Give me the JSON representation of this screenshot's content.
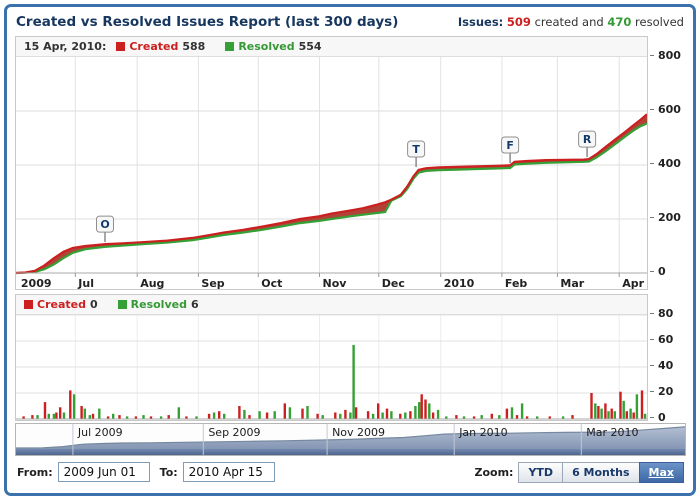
{
  "header": {
    "title": "Created vs Resolved Issues Report (last 300 days)",
    "issues_prefix": "Issues:",
    "created_count": "509",
    "created_text": "created and",
    "resolved_count": "470",
    "resolved_text": "resolved"
  },
  "colors": {
    "created": "#cc2020",
    "resolved": "#35a035",
    "band": "#b04238",
    "grid": "#e2e2e2",
    "axis": "#aaaaaa",
    "accent_blue": "#3b72ad",
    "nav_area_top": "#b3bfd2",
    "nav_area_bottom": "#8496b4",
    "nav_strip_top": "#7389ae",
    "nav_strip_bottom": "#4e6690"
  },
  "top_legend": {
    "date_label": "15 Apr, 2010:",
    "created_label": "Created",
    "created_value": "588",
    "resolved_label": "Resolved",
    "resolved_value": "554"
  },
  "bottom_legend": {
    "created_label": "Created",
    "created_value": "0",
    "resolved_label": "Resolved",
    "resolved_value": "6"
  },
  "chart_data": [
    {
      "type": "line",
      "name": "cumulative-created-vs-resolved",
      "title": "Created vs Resolved Issues Report (last 300 days)",
      "x_range": [
        "2009 Jun 01",
        "2010 Apr 15"
      ],
      "ylim": [
        0,
        800
      ],
      "y_ticks": [
        0,
        200,
        400,
        600,
        800
      ],
      "grid": true,
      "legend_position": "top-left",
      "x_labels": [
        {
          "text": "2009",
          "pct": 0.3
        },
        {
          "text": "Jul",
          "pct": 9.4
        },
        {
          "text": "Aug",
          "pct": 19.2
        },
        {
          "text": "Sep",
          "pct": 28.9
        },
        {
          "text": "Oct",
          "pct": 38.4
        },
        {
          "text": "Nov",
          "pct": 48.1
        },
        {
          "text": "Dec",
          "pct": 57.5
        },
        {
          "text": "2010",
          "pct": 67.3
        },
        {
          "text": "Feb",
          "pct": 77.0
        },
        {
          "text": "Mar",
          "pct": 85.8
        },
        {
          "text": "Apr",
          "pct": 95.6
        }
      ],
      "month_grid_pcts": [
        9.4,
        19.2,
        28.9,
        38.4,
        48.1,
        57.5,
        67.3,
        77.0,
        85.8,
        95.6
      ],
      "flags": [
        {
          "label": "O",
          "pct": 14.1,
          "value": 107
        },
        {
          "label": "T",
          "pct": 63.4,
          "value": 385
        },
        {
          "label": "F",
          "pct": 78.3,
          "value": 400
        },
        {
          "label": "R",
          "pct": 90.5,
          "value": 422
        }
      ],
      "series_names": [
        "Created",
        "Resolved"
      ],
      "points": [
        [
          0,
          0,
          0
        ],
        [
          1.5,
          2,
          1
        ],
        [
          3,
          8,
          4
        ],
        [
          4.5,
          28,
          14
        ],
        [
          6,
          55,
          32
        ],
        [
          7.5,
          78,
          55
        ],
        [
          9,
          93,
          75
        ],
        [
          11,
          100,
          88
        ],
        [
          13,
          104,
          94
        ],
        [
          14.2,
          107,
          97
        ],
        [
          17,
          110,
          102
        ],
        [
          20,
          114,
          107
        ],
        [
          24,
          120,
          113
        ],
        [
          28,
          130,
          122
        ],
        [
          31,
          142,
          133
        ],
        [
          33,
          150,
          141
        ],
        [
          36,
          160,
          150
        ],
        [
          39,
          172,
          160
        ],
        [
          42,
          185,
          172
        ],
        [
          45,
          200,
          185
        ],
        [
          48,
          210,
          193
        ],
        [
          50,
          220,
          200
        ],
        [
          53,
          232,
          210
        ],
        [
          55,
          240,
          216
        ],
        [
          57,
          252,
          222
        ],
        [
          58.5,
          262,
          226
        ],
        [
          59.5,
          272,
          268
        ],
        [
          61,
          290,
          285
        ],
        [
          62,
          320,
          312
        ],
        [
          63,
          358,
          350
        ],
        [
          63.8,
          382,
          372
        ],
        [
          65,
          388,
          378
        ],
        [
          67,
          391,
          381
        ],
        [
          70,
          393,
          383
        ],
        [
          73,
          395,
          385
        ],
        [
          76,
          397,
          387
        ],
        [
          78.3,
          399,
          389
        ],
        [
          79,
          412,
          402
        ],
        [
          81,
          415,
          405
        ],
        [
          84,
          418,
          408
        ],
        [
          87,
          419,
          410
        ],
        [
          90,
          420,
          412
        ],
        [
          90.8,
          422,
          413
        ],
        [
          92,
          440,
          428
        ],
        [
          93.5,
          468,
          452
        ],
        [
          95,
          495,
          478
        ],
        [
          96.5,
          522,
          505
        ],
        [
          98,
          550,
          530
        ],
        [
          99,
          568,
          544
        ],
        [
          100,
          588,
          554
        ]
      ]
    },
    {
      "type": "bar",
      "name": "daily-created-vs-resolved",
      "ylim": [
        0,
        80
      ],
      "y_ticks": [
        0,
        20,
        40,
        60,
        80
      ],
      "grid": true,
      "series": [
        {
          "name": "Created",
          "points": [
            [
              1.2,
              2
            ],
            [
              2.6,
              3
            ],
            [
              4.6,
              13
            ],
            [
              6.4,
              5
            ],
            [
              7.0,
              9
            ],
            [
              8.6,
              22
            ],
            [
              10.4,
              10
            ],
            [
              12.2,
              4
            ],
            [
              14.6,
              2
            ],
            [
              16.4,
              3
            ],
            [
              19.0,
              2
            ],
            [
              21.4,
              2
            ],
            [
              24.2,
              3
            ],
            [
              27.0,
              2
            ],
            [
              30.6,
              4
            ],
            [
              32.2,
              6
            ],
            [
              35.4,
              10
            ],
            [
              37.0,
              3
            ],
            [
              39.8,
              5
            ],
            [
              42.6,
              12
            ],
            [
              45.4,
              8
            ],
            [
              47.8,
              4
            ],
            [
              50.6,
              5
            ],
            [
              52.2,
              7
            ],
            [
              53.9,
              9
            ],
            [
              55.8,
              6
            ],
            [
              57.4,
              12
            ],
            [
              58.8,
              8
            ],
            [
              60.9,
              4
            ],
            [
              62.5,
              6
            ],
            [
              64.3,
              19
            ],
            [
              64.9,
              15
            ],
            [
              66.1,
              5
            ],
            [
              69.8,
              3
            ],
            [
              72.6,
              2
            ],
            [
              75.4,
              4
            ],
            [
              77.8,
              8
            ],
            [
              79.4,
              3
            ],
            [
              81.0,
              2
            ],
            [
              84.6,
              2
            ],
            [
              88.2,
              3
            ],
            [
              91.2,
              20
            ],
            [
              92.3,
              10
            ],
            [
              93.4,
              12
            ],
            [
              94.4,
              8
            ],
            [
              95.8,
              21
            ],
            [
              96.8,
              6
            ],
            [
              97.9,
              5
            ],
            [
              99.2,
              22
            ]
          ]
        },
        {
          "name": "Resolved",
          "points": [
            [
              3.4,
              3
            ],
            [
              5.2,
              4
            ],
            [
              6.0,
              4
            ],
            [
              7.6,
              5
            ],
            [
              9.2,
              19
            ],
            [
              10.9,
              8
            ],
            [
              11.7,
              3
            ],
            [
              13.2,
              8
            ],
            [
              15.4,
              4
            ],
            [
              17.6,
              2
            ],
            [
              20.2,
              3
            ],
            [
              23.0,
              2
            ],
            [
              25.8,
              9
            ],
            [
              28.6,
              2
            ],
            [
              31.4,
              5
            ],
            [
              33.0,
              4
            ],
            [
              36.2,
              7
            ],
            [
              38.6,
              6
            ],
            [
              41.0,
              6
            ],
            [
              43.4,
              9
            ],
            [
              46.2,
              10
            ],
            [
              48.6,
              3
            ],
            [
              51.4,
              4
            ],
            [
              53.0,
              5
            ],
            [
              53.5,
              57
            ],
            [
              56.6,
              4
            ],
            [
              58.1,
              5
            ],
            [
              59.5,
              6
            ],
            [
              61.7,
              5
            ],
            [
              63.3,
              10
            ],
            [
              63.9,
              13
            ],
            [
              65.5,
              12
            ],
            [
              66.9,
              7
            ],
            [
              68.2,
              2
            ],
            [
              71.0,
              2
            ],
            [
              73.8,
              3
            ],
            [
              76.6,
              3
            ],
            [
              78.6,
              9
            ],
            [
              80.2,
              12
            ],
            [
              82.6,
              2
            ],
            [
              86.7,
              2
            ],
            [
              91.8,
              12
            ],
            [
              92.8,
              8
            ],
            [
              93.9,
              6
            ],
            [
              94.9,
              6
            ],
            [
              96.3,
              14
            ],
            [
              97.4,
              8
            ],
            [
              98.4,
              19
            ],
            [
              99.7,
              4
            ]
          ]
        }
      ]
    },
    {
      "type": "area",
      "name": "timeline-navigator",
      "labels": [
        {
          "text": "Jul 2009",
          "pct": 8.5
        },
        {
          "text": "Sep 2009",
          "pct": 28.0
        },
        {
          "text": "Nov 2009",
          "pct": 46.5
        },
        {
          "text": "Jan 2010",
          "pct": 65.5
        },
        {
          "text": "Mar 2010",
          "pct": 84.5
        }
      ],
      "divider_pcts": [
        8.5,
        28.0,
        46.5,
        65.5,
        84.5
      ],
      "points": [
        [
          0,
          0.04
        ],
        [
          4,
          0.05
        ],
        [
          7,
          0.1
        ],
        [
          10,
          0.2
        ],
        [
          13,
          0.23
        ],
        [
          16,
          0.25
        ],
        [
          20,
          0.26
        ],
        [
          25,
          0.28
        ],
        [
          30,
          0.3
        ],
        [
          35,
          0.32
        ],
        [
          40,
          0.34
        ],
        [
          45,
          0.37
        ],
        [
          50,
          0.4
        ],
        [
          54,
          0.44
        ],
        [
          58,
          0.48
        ],
        [
          61,
          0.55
        ],
        [
          64,
          0.62
        ],
        [
          67,
          0.64
        ],
        [
          70,
          0.65
        ],
        [
          74,
          0.66
        ],
        [
          78,
          0.68
        ],
        [
          82,
          0.69
        ],
        [
          86,
          0.7
        ],
        [
          89,
          0.71
        ],
        [
          91,
          0.74
        ],
        [
          93,
          0.78
        ],
        [
          95,
          0.82
        ],
        [
          97,
          0.86
        ],
        [
          100,
          0.92
        ]
      ]
    }
  ],
  "footer": {
    "from_label": "From:",
    "from_value": "2009 Jun 01",
    "to_label": "To:",
    "to_value": "2010 Apr 15",
    "zoom_label": "Zoom:",
    "zoom_buttons": [
      "YTD",
      "6 Months",
      "Max"
    ],
    "zoom_active": "Max"
  }
}
